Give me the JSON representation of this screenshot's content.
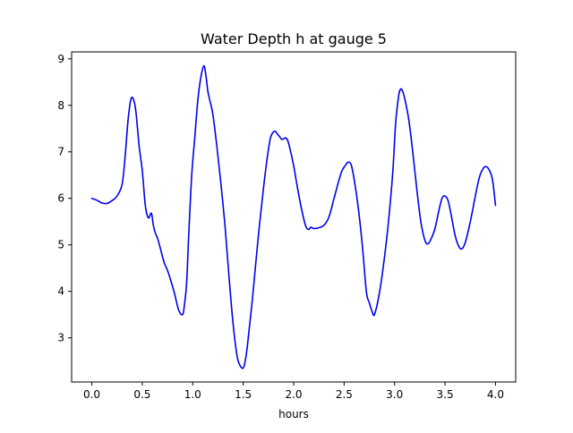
{
  "chart_data": {
    "type": "line",
    "title": "Water Depth h at gauge 5",
    "xlabel": "hours",
    "ylabel": "",
    "xlim": [
      -0.2,
      4.2
    ],
    "ylim": [
      2.05,
      9.15
    ],
    "xticks": [
      0.0,
      0.5,
      1.0,
      1.5,
      2.0,
      2.5,
      3.0,
      3.5,
      4.0
    ],
    "xtick_labels": [
      "0.0",
      "0.5",
      "1.0",
      "1.5",
      "2.0",
      "2.5",
      "3.0",
      "3.5",
      "4.0"
    ],
    "yticks": [
      3,
      4,
      5,
      6,
      7,
      8,
      9
    ],
    "ytick_labels": [
      "3",
      "4",
      "5",
      "6",
      "7",
      "8",
      "9"
    ],
    "grid": false,
    "series": [
      {
        "color": "#0000ee",
        "x": [
          0.0,
          0.05,
          0.1,
          0.15,
          0.2,
          0.25,
          0.3,
          0.33,
          0.36,
          0.39,
          0.42,
          0.44,
          0.47,
          0.5,
          0.53,
          0.56,
          0.59,
          0.61,
          0.63,
          0.65,
          0.67,
          0.7,
          0.72,
          0.75,
          0.78,
          0.82,
          0.86,
          0.9,
          0.92,
          0.94,
          0.96,
          0.99,
          1.02,
          1.05,
          1.08,
          1.11,
          1.13,
          1.15,
          1.17,
          1.2,
          1.24,
          1.28,
          1.32,
          1.36,
          1.4,
          1.44,
          1.47,
          1.5,
          1.52,
          1.54,
          1.56,
          1.59,
          1.62,
          1.66,
          1.7,
          1.74,
          1.77,
          1.8,
          1.82,
          1.84,
          1.86,
          1.88,
          1.9,
          1.92,
          1.94,
          1.96,
          2.0,
          2.04,
          2.08,
          2.12,
          2.15,
          2.17,
          2.2,
          2.25,
          2.3,
          2.35,
          2.4,
          2.45,
          2.48,
          2.51,
          2.54,
          2.57,
          2.6,
          2.64,
          2.68,
          2.72,
          2.75,
          2.78,
          2.8,
          2.84,
          2.88,
          2.93,
          2.98,
          3.01,
          3.04,
          3.06,
          3.08,
          3.1,
          3.14,
          3.18,
          3.22,
          3.26,
          3.3,
          3.33,
          3.36,
          3.4,
          3.44,
          3.47,
          3.5,
          3.53,
          3.56,
          3.6,
          3.64,
          3.67,
          3.7,
          3.73,
          3.76,
          3.8,
          3.84,
          3.88,
          3.91,
          3.94,
          3.97,
          4.0
        ],
        "values": [
          6.0,
          5.96,
          5.9,
          5.89,
          5.95,
          6.05,
          6.3,
          6.9,
          7.7,
          8.15,
          8.08,
          7.8,
          7.1,
          6.6,
          5.85,
          5.58,
          5.68,
          5.42,
          5.25,
          5.15,
          5.0,
          4.75,
          4.6,
          4.45,
          4.25,
          3.95,
          3.6,
          3.5,
          3.75,
          4.2,
          5.2,
          6.5,
          7.3,
          8.1,
          8.6,
          8.85,
          8.65,
          8.3,
          8.1,
          7.8,
          7.1,
          6.3,
          5.4,
          4.3,
          3.3,
          2.6,
          2.4,
          2.35,
          2.5,
          2.8,
          3.2,
          3.8,
          4.5,
          5.4,
          6.2,
          6.9,
          7.3,
          7.43,
          7.44,
          7.38,
          7.33,
          7.27,
          7.28,
          7.3,
          7.25,
          7.1,
          6.7,
          6.2,
          5.75,
          5.4,
          5.33,
          5.38,
          5.35,
          5.37,
          5.42,
          5.6,
          6.0,
          6.4,
          6.6,
          6.7,
          6.78,
          6.72,
          6.4,
          5.8,
          5.0,
          4.0,
          3.75,
          3.55,
          3.5,
          3.85,
          4.4,
          5.3,
          6.5,
          7.6,
          8.2,
          8.35,
          8.3,
          8.15,
          7.7,
          7.0,
          6.2,
          5.5,
          5.1,
          5.02,
          5.12,
          5.35,
          5.75,
          6.0,
          6.05,
          5.95,
          5.65,
          5.2,
          4.95,
          4.92,
          5.05,
          5.3,
          5.6,
          6.05,
          6.45,
          6.65,
          6.68,
          6.6,
          6.4,
          5.85
        ]
      }
    ]
  }
}
